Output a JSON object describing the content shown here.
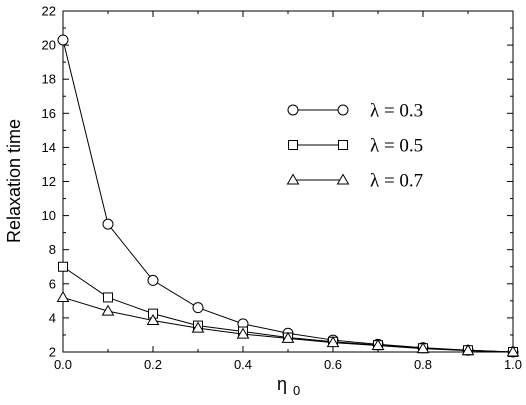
{
  "chart_data": {
    "type": "line",
    "xlabel": "η",
    "xlabel_subscript": "0",
    "ylabel": "Relaxation time",
    "xlim": [
      0.0,
      1.0
    ],
    "ylim": [
      2,
      22
    ],
    "xticks": [
      0.0,
      0.2,
      0.4,
      0.6,
      0.8,
      1.0
    ],
    "xtick_labels": [
      "0.0",
      "0.2",
      "0.4",
      "0.6",
      "0.8",
      "1.0"
    ],
    "yticks": [
      2,
      4,
      6,
      8,
      10,
      12,
      14,
      16,
      18,
      20,
      22
    ],
    "ytick_labels": [
      "2",
      "4",
      "6",
      "8",
      "10",
      "12",
      "14",
      "16",
      "18",
      "20",
      "22"
    ],
    "grid": false,
    "legend_position": "center-right",
    "x": [
      0.0,
      0.1,
      0.2,
      0.3,
      0.4,
      0.5,
      0.6,
      0.7,
      0.8,
      0.9,
      1.0
    ],
    "series": [
      {
        "name": "λ = 0.3",
        "marker": "circle",
        "values": [
          20.3,
          9.5,
          6.2,
          4.6,
          3.65,
          3.1,
          2.7,
          2.45,
          2.25,
          2.1,
          2.0
        ]
      },
      {
        "name": "λ = 0.5",
        "marker": "square",
        "values": [
          7.0,
          5.2,
          4.25,
          3.55,
          3.2,
          2.85,
          2.6,
          2.4,
          2.22,
          2.1,
          2.0
        ]
      },
      {
        "name": "λ = 0.7",
        "marker": "triangle",
        "values": [
          5.2,
          4.4,
          3.85,
          3.4,
          3.05,
          2.8,
          2.55,
          2.38,
          2.2,
          2.08,
          2.0
        ]
      }
    ]
  }
}
